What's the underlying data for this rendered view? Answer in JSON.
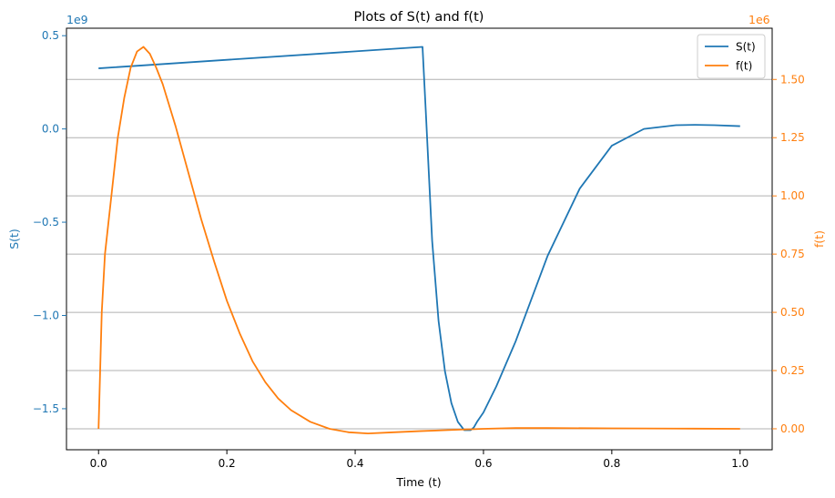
{
  "chart_data": {
    "type": "line",
    "title": "Plots of S(t) and f(t)",
    "xlabel": "Time (t)",
    "ylabel_left": "S(t)",
    "ylabel_right": "f(t)",
    "left_offset_text": "1e9",
    "right_offset_text": "1e6",
    "xlim": [
      -0.05,
      1.05
    ],
    "ylim_left": [
      -1.72,
      0.54
    ],
    "ylim_right": [
      -0.09,
      1.72
    ],
    "x_ticks": [
      0.0,
      0.2,
      0.4,
      0.6,
      0.8,
      1.0
    ],
    "x_tick_labels": [
      "0.0",
      "0.2",
      "0.4",
      "0.6",
      "0.8",
      "1.0"
    ],
    "y_left_ticks": [
      0.5,
      0.0,
      -0.5,
      -1.0,
      -1.5
    ],
    "y_left_tick_labels": [
      "0.5",
      "0.0",
      "−0.5",
      "−1.0",
      "−1.5"
    ],
    "y_right_ticks": [
      1.5,
      1.25,
      1.0,
      0.75,
      0.5,
      0.25,
      0.0
    ],
    "y_right_tick_labels": [
      "1.50",
      "1.25",
      "1.00",
      "0.75",
      "0.50",
      "0.25",
      "0.00"
    ],
    "grid": "horizontal lines at right-axis ticks",
    "legend_position": "top-right",
    "colors": {
      "S": "#1f77b4",
      "f": "#ff7f0e",
      "grid": "#b0b0b0"
    },
    "series": [
      {
        "name": "S(t)",
        "axis": "left",
        "color": "#1f77b4",
        "x": [
          0.0,
          0.505,
          0.51,
          0.52,
          0.53,
          0.54,
          0.55,
          0.56,
          0.57,
          0.575,
          0.58,
          0.585,
          0.59,
          0.6,
          0.62,
          0.65,
          0.7,
          0.75,
          0.8,
          0.85,
          0.9,
          0.93,
          0.96,
          1.0
        ],
        "y": [
          0.325,
          0.44,
          0.1,
          -0.6,
          -1.03,
          -1.3,
          -1.47,
          -1.57,
          -1.615,
          -1.615,
          -1.615,
          -1.6,
          -1.57,
          -1.52,
          -1.38,
          -1.14,
          -0.68,
          -0.32,
          -0.09,
          0.0,
          0.02,
          0.022,
          0.02,
          0.015
        ]
      },
      {
        "name": "f(t)",
        "axis": "right",
        "color": "#ff7f0e",
        "x": [
          0.0,
          0.005,
          0.01,
          0.02,
          0.03,
          0.04,
          0.05,
          0.06,
          0.07,
          0.08,
          0.09,
          0.1,
          0.12,
          0.14,
          0.16,
          0.18,
          0.2,
          0.22,
          0.24,
          0.26,
          0.28,
          0.3,
          0.33,
          0.36,
          0.39,
          0.42,
          0.46,
          0.5,
          0.55,
          0.6,
          0.65,
          0.7,
          0.8,
          0.9,
          1.0
        ],
        "y": [
          0.0,
          0.5,
          0.75,
          1.0,
          1.25,
          1.42,
          1.55,
          1.62,
          1.64,
          1.61,
          1.55,
          1.48,
          1.3,
          1.1,
          0.9,
          0.72,
          0.55,
          0.41,
          0.29,
          0.2,
          0.13,
          0.08,
          0.03,
          0.0,
          -0.015,
          -0.02,
          -0.015,
          -0.01,
          -0.005,
          0.0,
          0.003,
          0.003,
          0.002,
          0.001,
          0.0
        ]
      }
    ]
  }
}
